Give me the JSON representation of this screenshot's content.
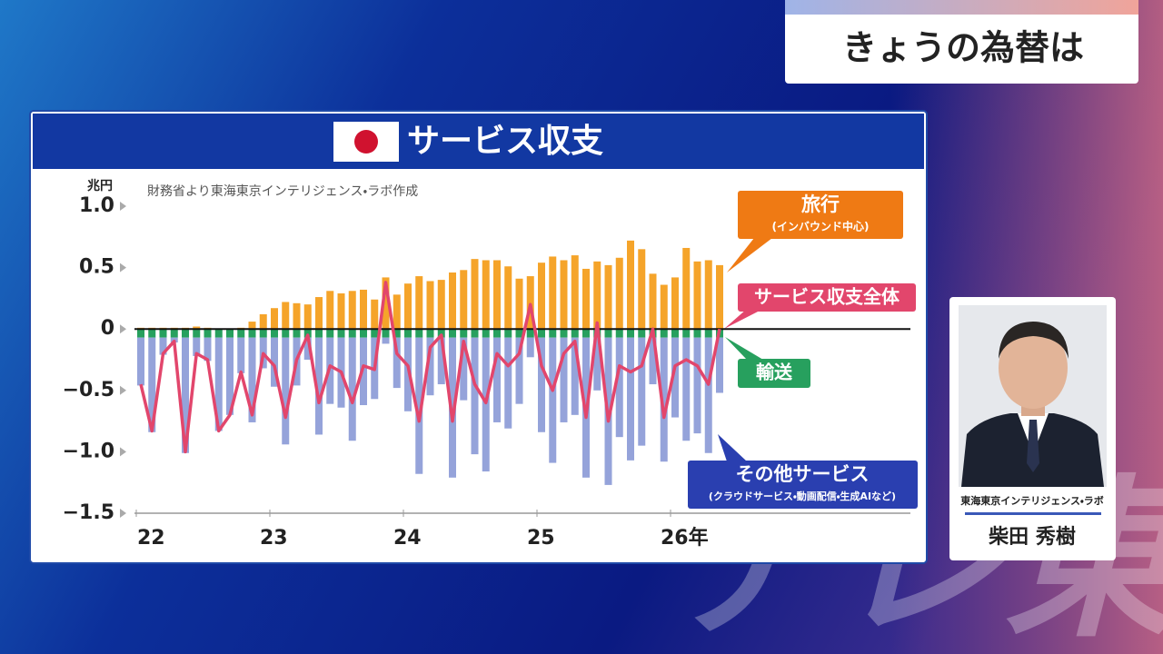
{
  "header": {
    "title": "きょうの為替は"
  },
  "chart_data": {
    "type": "bar",
    "title": "サービス収支",
    "unit": "兆円",
    "source": "財務省より東海東京インテリジェンス・ラボ作成",
    "categories": [
      "22",
      null,
      null,
      null,
      null,
      null,
      null,
      null,
      null,
      null,
      null,
      null,
      "23",
      null,
      null,
      null,
      null,
      null,
      null,
      null,
      null,
      null,
      null,
      null,
      "24",
      null,
      null,
      null,
      null,
      null,
      null,
      null,
      null,
      null,
      null,
      null,
      "25",
      null,
      null,
      null,
      null,
      null,
      null,
      null,
      null,
      null,
      null,
      null,
      "26年",
      null,
      null,
      null,
      null
    ],
    "ylim": [
      -1.5,
      1.0
    ],
    "yticks": [
      {
        "value": 1.0,
        "label": "1.0"
      },
      0.5,
      0,
      {
        "value": -0.5,
        "label": "−0.5"
      },
      {
        "value": -1.0,
        "label": "−1.0"
      },
      {
        "value": -1.5,
        "label": "−1.5"
      }
    ],
    "grid": false,
    "stacked": true,
    "series": [
      {
        "name": "旅行",
        "sublabel": "(インバウンド中心)",
        "color": "#f5a42a",
        "values": [
          0.01,
          0.01,
          0.01,
          0.01,
          0.01,
          0.02,
          0.01,
          0,
          0,
          0.01,
          0.06,
          0.12,
          0.17,
          0.22,
          0.21,
          0.2,
          0.26,
          0.31,
          0.29,
          0.31,
          0.32,
          0.24,
          0.42,
          0.28,
          0.37,
          0.43,
          0.39,
          0.4,
          0.46,
          0.48,
          0.57,
          0.56,
          0.56,
          0.51,
          0.41,
          0.43,
          0.54,
          0.59,
          0.56,
          0.6,
          0.49,
          0.55,
          0.52,
          0.58,
          0.72,
          0.65,
          0.45,
          0.36,
          0.42,
          0.66,
          0.55,
          0.56,
          0.52
        ]
      },
      {
        "name": "輸送",
        "color": "#27a05e",
        "values": [
          -0.07,
          -0.07,
          -0.07,
          -0.07,
          -0.07,
          -0.07,
          -0.07,
          -0.07,
          -0.07,
          -0.07,
          -0.07,
          -0.07,
          -0.07,
          -0.07,
          -0.07,
          -0.07,
          -0.07,
          -0.07,
          -0.07,
          -0.07,
          -0.07,
          -0.07,
          -0.07,
          -0.07,
          -0.07,
          -0.07,
          -0.07,
          -0.07,
          -0.07,
          -0.07,
          -0.07,
          -0.07,
          -0.07,
          -0.07,
          -0.07,
          -0.07,
          -0.07,
          -0.07,
          -0.07,
          -0.07,
          -0.07,
          -0.07,
          -0.07,
          -0.07,
          -0.07,
          -0.07,
          -0.07,
          -0.07,
          -0.07,
          -0.07,
          -0.07,
          -0.07,
          -0.07
        ]
      },
      {
        "name": "その他サービス",
        "sublabel": "(クラウドサービス・動画配信・生成AIなど)",
        "color": "#95a3da",
        "values": [
          -0.39,
          -0.77,
          -0.14,
          -0.04,
          -0.94,
          -0.15,
          -0.19,
          -0.76,
          -0.63,
          -0.29,
          -0.69,
          -0.25,
          -0.4,
          -0.87,
          -0.39,
          -0.18,
          -0.79,
          -0.54,
          -0.57,
          -0.84,
          -0.55,
          -0.5,
          -0.05,
          -0.41,
          -0.6,
          -1.11,
          -0.47,
          -0.38,
          -1.14,
          -0.51,
          -0.95,
          -1.09,
          -0.69,
          -0.74,
          -0.54,
          -0.16,
          -0.77,
          -1.02,
          -0.69,
          -0.63,
          -1.14,
          -0.43,
          -1.2,
          -0.81,
          -1.0,
          -0.88,
          -0.38,
          -1.01,
          -0.65,
          -0.84,
          -0.78,
          -0.94,
          -0.45
        ]
      },
      {
        "name": "サービス収支全体",
        "type": "line",
        "color": "#e2466c",
        "values": [
          -0.45,
          -0.83,
          -0.2,
          -0.1,
          -1.0,
          -0.2,
          -0.25,
          -0.83,
          -0.7,
          -0.35,
          -0.7,
          -0.2,
          -0.3,
          -0.72,
          -0.25,
          -0.05,
          -0.6,
          -0.3,
          -0.35,
          -0.6,
          -0.3,
          -0.33,
          0.38,
          -0.2,
          -0.3,
          -0.75,
          -0.15,
          -0.05,
          -0.75,
          -0.1,
          -0.45,
          -0.6,
          -0.2,
          -0.3,
          -0.2,
          0.2,
          -0.3,
          -0.5,
          -0.2,
          -0.1,
          -0.72,
          0.05,
          -0.75,
          -0.3,
          -0.35,
          -0.3,
          0.0,
          -0.72,
          -0.3,
          -0.25,
          -0.3,
          -0.45,
          0.0
        ]
      }
    ]
  },
  "person": {
    "affiliation": "東海東京インテリジェンス・ラボ",
    "name": "柴田 秀樹"
  },
  "watermark": "テレ東"
}
